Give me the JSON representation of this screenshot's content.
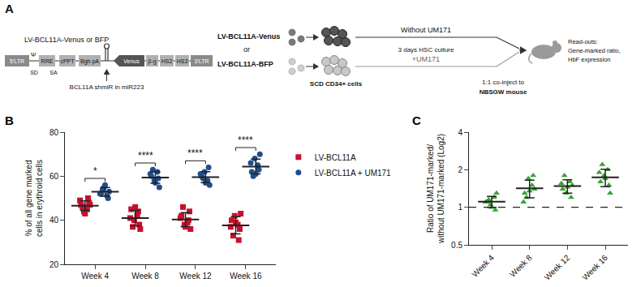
{
  "diagram": {
    "label": "A",
    "construct_title": "LV-BCL11A-Venus or BFP",
    "elements": [
      "5'LTR",
      "Ψ",
      "RRE",
      "cPPT",
      "Bgh pA",
      "Venus",
      "β-g",
      "HS2",
      "HS3",
      "3'LTR"
    ],
    "splice_sites": [
      "SD",
      "SA"
    ],
    "shmir_label": "BCL11A shmiR in miR223",
    "vectors": [
      "LV-BCL11A-Venus",
      "or",
      "LV-BCL11A-BFP"
    ],
    "cells": "SCD CD34+ cells",
    "top_arm": "Without UM171",
    "culture": "3 days HSC culture",
    "bottom_arm": "+UM171",
    "injection": [
      "1:1 co-inject to",
      "NBSGW mouse"
    ],
    "readouts": [
      "Read-outs:",
      "Gene-marked ratio,",
      "HbF expression"
    ]
  },
  "chart_data": [
    {
      "label": "B",
      "type": "scatter",
      "categories": [
        "Week 4",
        "Week 8",
        "Week 12",
        "Week 16"
      ],
      "y_label": "% of all gene marked cells in erythroid cells",
      "ylim": [
        20,
        80
      ],
      "yticks": [
        20,
        40,
        60,
        80
      ],
      "legend": "right",
      "significance": [
        "*",
        "****",
        "****",
        "****"
      ],
      "series": [
        {
          "name": "LV-BCL11A",
          "color": "#c8102e",
          "marker": "square",
          "values": [
            [
              47,
              45,
              44,
              48,
              46,
              50,
              43,
              49,
              47
            ],
            [
              45,
              42,
              40,
              38,
              37,
              44,
              46,
              41,
              36
            ],
            [
              42,
              39,
              38,
              44,
              46,
              40,
              37,
              41,
              36
            ],
            [
              40,
              38,
              42,
              36,
              33,
              31,
              39,
              37,
              43
            ]
          ],
          "mean": [
            46.6,
            41,
            40.3,
            37.7
          ],
          "sd": [
            2.2,
            3.5,
            3.2,
            3.9
          ]
        },
        {
          "name": "LV-BCL11A + UM171",
          "color": "#1f4e8c",
          "marker": "circle",
          "values": [
            [
              52,
              51,
              55,
              53,
              54,
              50,
              56,
              52
            ],
            [
              60,
              62,
              58,
              55,
              63,
              59,
              57,
              61
            ],
            [
              60,
              58,
              62,
              56,
              59,
              64,
              57,
              61
            ],
            [
              62,
              65,
              68,
              70,
              60,
              63,
              61,
              66
            ]
          ],
          "mean": [
            52.9,
            59.4,
            59.6,
            64.4
          ],
          "sd": [
            2.0,
            2.6,
            2.5,
            3.4
          ]
        }
      ]
    },
    {
      "label": "C",
      "type": "scatter",
      "categories": [
        "Week 4",
        "Week 8",
        "Week 12",
        "Week 16"
      ],
      "y_label": "Ratio of UM171-marked/ without UM171-marked (Log2)",
      "log": "y",
      "ylim": [
        0.5,
        4
      ],
      "yticks": [
        0.5,
        1,
        2,
        4
      ],
      "reference_line": 1,
      "line_style": "dashed",
      "series": [
        {
          "color": "#3aa335",
          "marker": "triangle-up",
          "values": [
            [
              1.1,
              1.2,
              1.05,
              1.3,
              1.15,
              0.95,
              1.0,
              1.1
            ],
            [
              1.3,
              1.5,
              1.7,
              1.4,
              1.2,
              1.8,
              1.35,
              1.1
            ],
            [
              1.4,
              1.6,
              1.3,
              1.5,
              1.8,
              1.2,
              1.45,
              1.55
            ],
            [
              1.6,
              2.0,
              1.8,
              1.3,
              2.2,
              1.5,
              1.7,
              1.9
            ]
          ],
          "mean": [
            1.11,
            1.42,
            1.48,
            1.74
          ],
          "sd": [
            0.11,
            0.23,
            0.18,
            0.28
          ]
        }
      ]
    }
  ]
}
